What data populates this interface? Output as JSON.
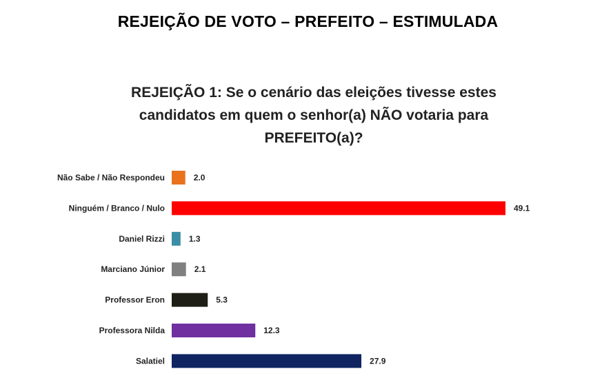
{
  "page": {
    "title": "REJEIÇÃO DE VOTO – PREFEITO – ESTIMULADA"
  },
  "chart_data": {
    "type": "bar",
    "orientation": "horizontal",
    "title": "REJEIÇÃO 1: Se o cenário das eleições tivesse estes candidatos em quem o senhor(a) NÃO votaria para PREFEITO(a)?",
    "categories": [
      "Não Sabe / Não Respondeu",
      "Ninguém / Branco / Nulo",
      "Daniel Rizzi",
      "Marciano Júnior",
      "Professor Eron",
      "Professora Nilda",
      "Salatiel"
    ],
    "values": [
      2.0,
      49.1,
      1.3,
      2.1,
      5.3,
      12.3,
      27.9
    ],
    "value_labels": [
      "2.0",
      "49.1",
      "1.3",
      "2.1",
      "5.3",
      "12.3",
      "27.9"
    ],
    "colors": [
      "#e8731c",
      "#ff0000",
      "#3a8ea5",
      "#808080",
      "#1e1e16",
      "#7030a0",
      "#0f2461"
    ],
    "xlim": [
      0,
      49.1
    ],
    "grid": false,
    "legend": "none"
  }
}
